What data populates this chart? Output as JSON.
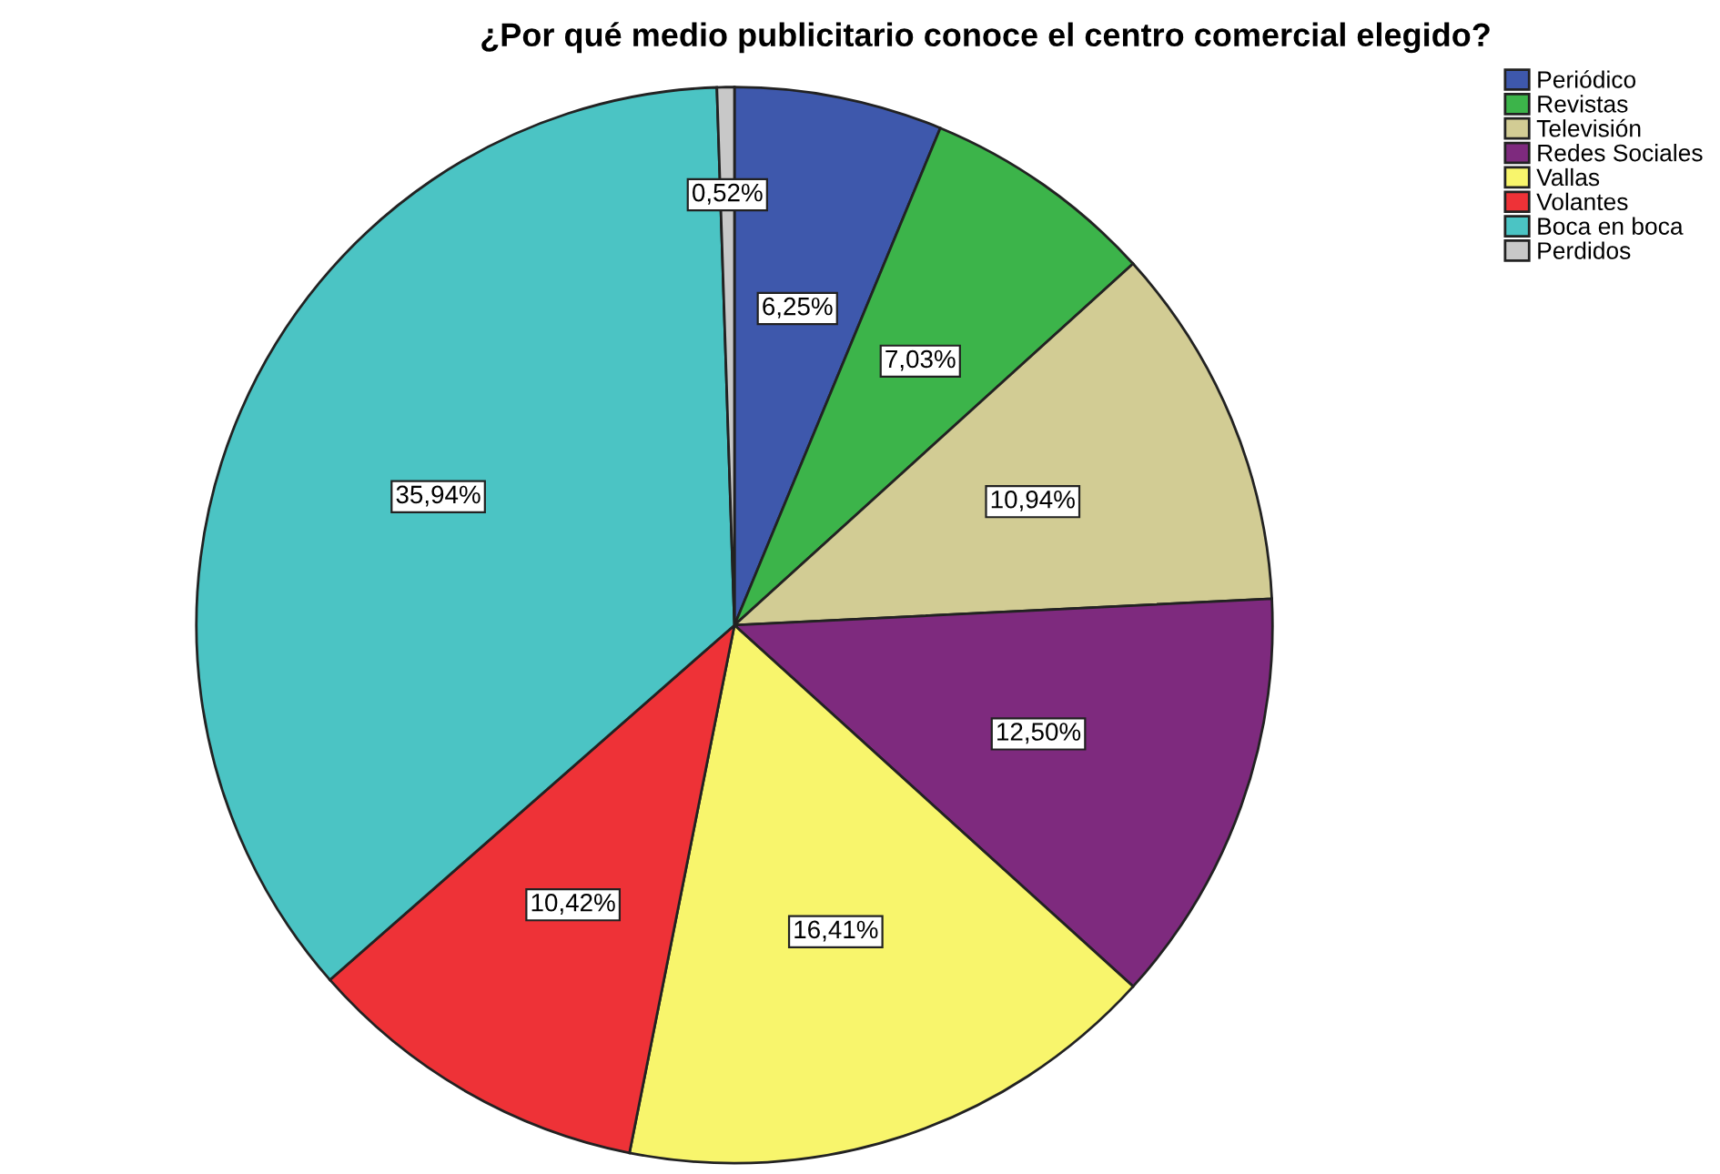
{
  "chart_data": {
    "type": "pie",
    "title": "¿Por qué medio publicitario conoce el centro comercial elegido?",
    "categories": [
      "Periódico",
      "Revistas",
      "Televisión",
      "Redes Sociales",
      "Vallas",
      "Volantes",
      "Boca en boca",
      "Perdidos"
    ],
    "values": [
      6.25,
      7.03,
      10.94,
      12.5,
      16.41,
      10.42,
      35.94,
      0.52
    ],
    "value_labels": [
      "6,25%",
      "7,03%",
      "10,94%",
      "12,50%",
      "16,41%",
      "10,42%",
      "35,94%",
      "0,52%"
    ],
    "colors": [
      "#3e58ac",
      "#3cb44a",
      "#d2cc94",
      "#7e2a7e",
      "#f8f56c",
      "#ee3237",
      "#4bc4c4",
      "#c8c8c8"
    ],
    "legend": "top right"
  }
}
